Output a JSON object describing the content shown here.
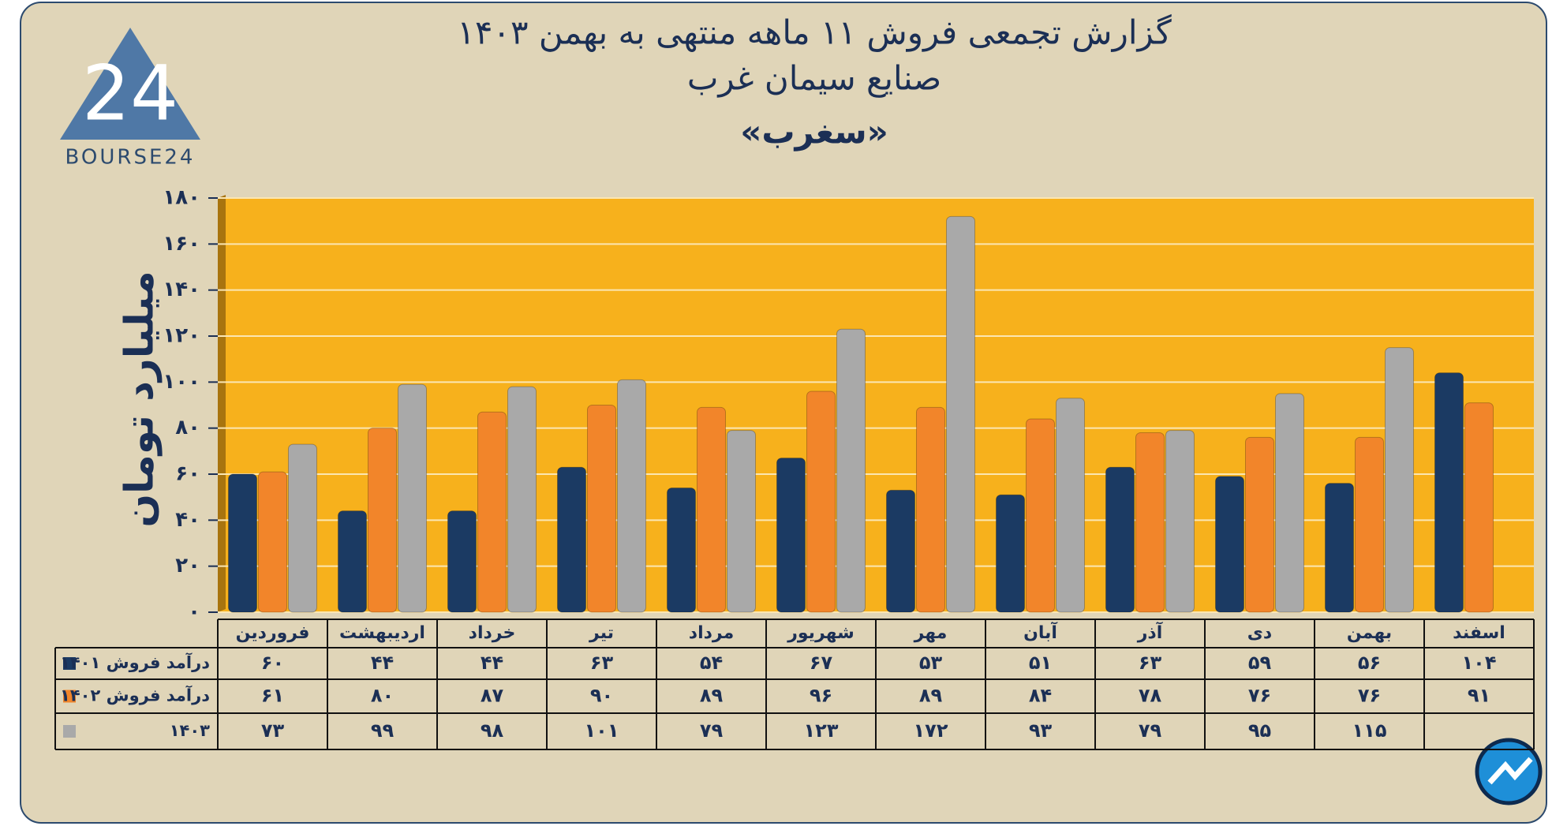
{
  "logo": {
    "mark": "24",
    "text": "BOURSE24"
  },
  "chart_data": {
    "type": "bar",
    "title": "گزارش تجمعی فروش ۱۱ ماهه منتهی به بهمن ۱۴۰۳",
    "subtitle": "صنایع سیمان غرب",
    "subtitle2": "«سغرب»",
    "y_label": "میلیارد تومان",
    "categories": [
      "فروردین",
      "اردیبهشت",
      "خرداد",
      "تیر",
      "مرداد",
      "شهریور",
      "مهر",
      "آبان",
      "آذر",
      "دی",
      "بهمن",
      "اسفند"
    ],
    "series": [
      {
        "name": "درآمد فروش ۱۴۰۱",
        "color": "#1b3a63",
        "values": [
          60,
          44,
          44,
          63,
          54,
          67,
          53,
          51,
          63,
          59,
          56,
          104
        ],
        "value_labels": [
          "۶۰",
          "۴۴",
          "۴۴",
          "۶۳",
          "۵۴",
          "۶۷",
          "۵۳",
          "۵۱",
          "۶۳",
          "۵۹",
          "۵۶",
          "۱۰۴"
        ]
      },
      {
        "name": "درآمد فروش ۱۴۰۲",
        "color": "#f2852a",
        "values": [
          61,
          80,
          87,
          90,
          89,
          96,
          89,
          84,
          78,
          76,
          76,
          91
        ],
        "value_labels": [
          "۶۱",
          "۸۰",
          "۸۷",
          "۹۰",
          "۸۹",
          "۹۶",
          "۸۹",
          "۸۴",
          "۷۸",
          "۷۶",
          "۷۶",
          "۹۱"
        ]
      },
      {
        "name": "۱۴۰۳",
        "color": "#a9a9a9",
        "values": [
          73,
          99,
          98,
          101,
          79,
          123,
          172,
          93,
          79,
          95,
          115,
          null
        ],
        "value_labels": [
          "۷۳",
          "۹۹",
          "۹۸",
          "۱۰۱",
          "۷۹",
          "۱۲۳",
          "۱۷۲",
          "۹۳",
          "۷۹",
          "۹۵",
          "۱۱۵",
          null
        ]
      }
    ],
    "ylim": [
      0,
      180
    ],
    "yticks": [
      {
        "value": 0,
        "label": "۰"
      },
      {
        "value": 20,
        "label": "۲۰"
      },
      {
        "value": 40,
        "label": "۴۰"
      },
      {
        "value": 60,
        "label": "۶۰"
      },
      {
        "value": 80,
        "label": "۸۰"
      },
      {
        "value": 100,
        "label": "۱۰۰"
      },
      {
        "value": 120,
        "label": "۱۲۰"
      },
      {
        "value": 140,
        "label": "۱۴۰"
      },
      {
        "value": 160,
        "label": "۱۶۰"
      },
      {
        "value": 180,
        "label": "۱۸۰"
      }
    ],
    "grid": true
  }
}
